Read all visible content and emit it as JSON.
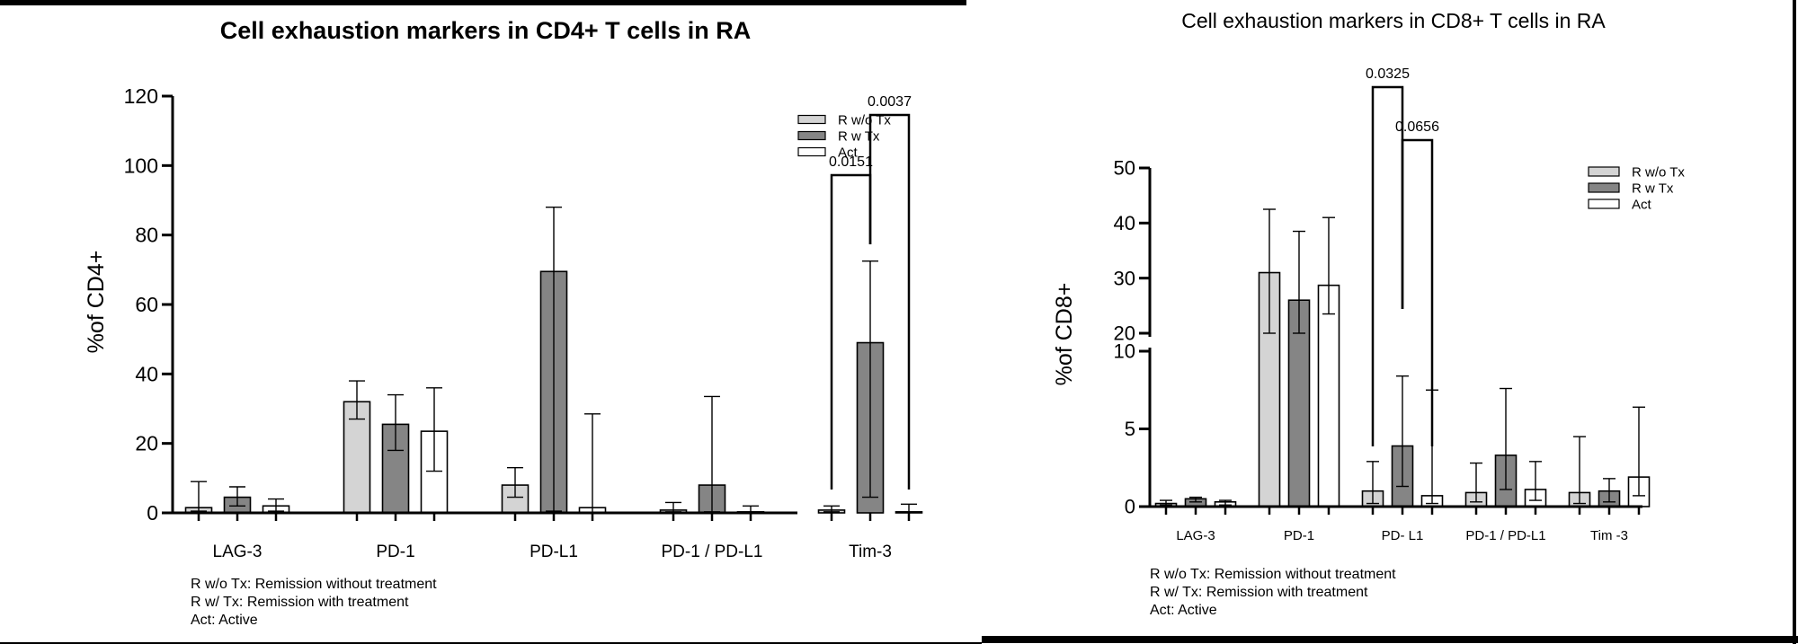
{
  "colors": {
    "R w/o Tx": "#d4d4d4",
    "R w Tx": "#858585",
    "Act": "#ffffff"
  },
  "chart_data": [
    {
      "type": "bar",
      "title": "Cell exhaustion markers in CD4+ T cells in RA",
      "ylabel": "%of CD4+",
      "xlabel": "",
      "ylim": [
        0,
        120
      ],
      "yticks": [
        "0",
        "20",
        "40",
        "60",
        "80",
        "100",
        "120"
      ],
      "grid": false,
      "legend_position": "top-right",
      "categories": [
        "LAG-3",
        "PD-1",
        "PD-L1",
        "PD-1 / PD-L1",
        "Tim-3"
      ],
      "series": [
        {
          "name": "R w/o Tx",
          "values": [
            1.5,
            32,
            8,
            0.8,
            0.8
          ],
          "err_low": [
            0.5,
            27,
            4.5,
            0.3,
            0.3
          ],
          "err_high": [
            9,
            38,
            13,
            3,
            2
          ]
        },
        {
          "name": "R w Tx",
          "values": [
            4.5,
            25.5,
            69.5,
            8,
            49
          ],
          "err_low": [
            2,
            18,
            0.5,
            0.3,
            4.5
          ],
          "err_high": [
            7.5,
            34,
            88,
            33.5,
            72.5
          ]
        },
        {
          "name": "Act",
          "values": [
            2,
            23.5,
            1.5,
            0.3,
            0.3
          ],
          "err_low": [
            0.5,
            12,
            0.2,
            0.1,
            0.1
          ],
          "err_high": [
            4,
            36,
            28.5,
            2,
            2.5
          ]
        }
      ],
      "annotations": [
        {
          "text": "0.0151",
          "from": [
            4,
            0
          ],
          "to": [
            4,
            1
          ]
        },
        {
          "text": "0.0037",
          "from": [
            4,
            1
          ],
          "to": [
            4,
            2
          ]
        }
      ],
      "notes": [
        "R w/o Tx: Remission without treatment",
        "R w/ Tx: Remission with treatment",
        "Act: Active"
      ]
    },
    {
      "type": "bar",
      "title": "Cell exhaustion markers in CD8+ T cells in RA",
      "ylabel": "%of CD8+",
      "xlabel": "",
      "ylim": [
        0,
        50
      ],
      "axis_break": [
        10,
        20
      ],
      "yticks": [
        "0",
        "5",
        "10",
        "20",
        "30",
        "40",
        "50"
      ],
      "grid": false,
      "legend_position": "top-right",
      "categories": [
        "LAG-3",
        "PD-1",
        "PD- L1",
        "PD-1 / PD-L1",
        "Tim -3"
      ],
      "series": [
        {
          "name": "R w/o Tx",
          "values": [
            0.2,
            31,
            1,
            0.9,
            0.9
          ],
          "err_low": [
            0.1,
            20,
            0.2,
            0.3,
            0.2
          ],
          "err_high": [
            0.4,
            42.5,
            2.9,
            2.8,
            4.5
          ]
        },
        {
          "name": "R w Tx",
          "values": [
            0.5,
            26,
            3.9,
            3.3,
            1
          ],
          "err_low": [
            0.3,
            20,
            1.3,
            1.1,
            0.3
          ],
          "err_high": [
            0.6,
            38.5,
            8.4,
            7.6,
            1.8
          ]
        },
        {
          "name": "Act",
          "values": [
            0.3,
            28.7,
            0.7,
            1.1,
            1.9
          ],
          "err_low": [
            0.1,
            23.5,
            0.2,
            0.4,
            0.7
          ],
          "err_high": [
            0.4,
            41,
            7.5,
            2.9,
            6.4
          ]
        }
      ],
      "annotations": [
        {
          "text": "0.0325",
          "from": [
            2,
            0
          ],
          "to": [
            2,
            1
          ]
        },
        {
          "text": "0.0656",
          "from": [
            2,
            1
          ],
          "to": [
            2,
            2
          ]
        }
      ],
      "notes": [
        "R w/o Tx: Remission without treatment",
        "R w/ Tx: Remission with treatment",
        "Act: Active"
      ]
    }
  ]
}
